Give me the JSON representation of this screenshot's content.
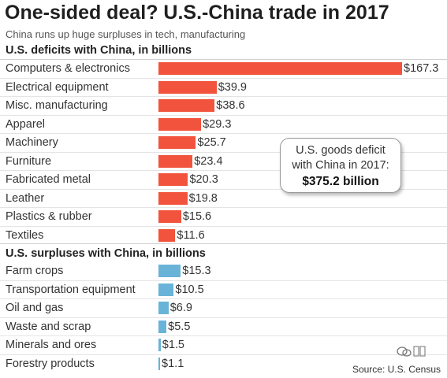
{
  "title": "One-sided deal? U.S.-China trade in 2017",
  "subtitle": "China runs up huge surpluses in tech, manufacturing",
  "source": "Source: U.S. Census",
  "callout": {
    "line1": "U.S. goods deficit",
    "line2": "with China in 2017:",
    "amount": "$375.2 billion"
  },
  "colors": {
    "deficit": "#f2533c",
    "surplus": "#69b3d8"
  },
  "chart_data": [
    {
      "type": "bar",
      "orientation": "horizontal",
      "title": "U.S. deficits with China, in billions",
      "categories": [
        "Computers & electronics",
        "Electrical equipment",
        "Misc. manufacturing",
        "Apparel",
        "Machinery",
        "Furniture",
        "Fabricated metal",
        "Leather",
        "Plastics & rubber",
        "Textiles"
      ],
      "values": [
        167.3,
        39.9,
        38.6,
        29.3,
        25.7,
        23.4,
        20.3,
        19.8,
        15.6,
        11.6
      ],
      "labels": [
        "$167.3",
        "$39.9",
        "$38.6",
        "$29.3",
        "$25.7",
        "$23.4",
        "$20.3",
        "$19.8",
        "$15.6",
        "$11.6"
      ],
      "color": "#f2533c"
    },
    {
      "type": "bar",
      "orientation": "horizontal",
      "title": "U.S. surpluses with China, in billions",
      "categories": [
        "Farm crops",
        "Transportation equipment",
        "Oil and gas",
        "Waste and scrap",
        "Minerals and ores",
        "Forestry products"
      ],
      "values": [
        15.3,
        10.5,
        6.9,
        5.5,
        1.5,
        1.1
      ],
      "labels": [
        "$15.3",
        "$10.5",
        "$6.9",
        "$5.5",
        "$1.5",
        "$1.1"
      ],
      "color": "#69b3d8"
    }
  ]
}
